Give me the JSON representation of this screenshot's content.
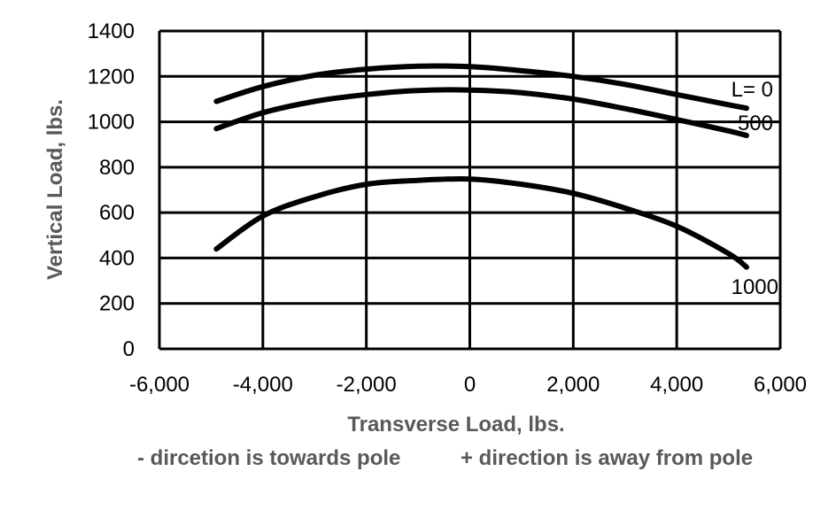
{
  "chart_data": {
    "type": "line",
    "title": "",
    "xlabel": "Transverse Load, lbs.",
    "ylabel": "Vertical Load, lbs.",
    "xlim": [
      -6000,
      6000
    ],
    "ylim": [
      0,
      1400
    ],
    "x_ticks": [
      -6000,
      -4000,
      -2000,
      0,
      2000,
      4000,
      6000
    ],
    "x_tick_labels": [
      "-6,000",
      "-4,000",
      "-2,000",
      "0",
      "2,000",
      "4,000",
      "6,000"
    ],
    "y_ticks": [
      0,
      200,
      400,
      600,
      800,
      1000,
      1200,
      1400
    ],
    "y_tick_labels": [
      "0",
      "200",
      "400",
      "600",
      "800",
      "1000",
      "1200",
      "1400"
    ],
    "grid": true,
    "legend": "none",
    "line_color": "#000000",
    "series": [
      {
        "name": "L=  0",
        "x": [
          -4900,
          -4000,
          -3000,
          -2000,
          -1000,
          0,
          1000,
          2000,
          3000,
          4000,
          5000,
          5350
        ],
        "values": [
          1090,
          1155,
          1205,
          1232,
          1245,
          1243,
          1225,
          1200,
          1165,
          1120,
          1075,
          1060
        ]
      },
      {
        "name": "500",
        "x": [
          -4900,
          -4000,
          -3000,
          -2000,
          -1000,
          0,
          1000,
          2000,
          3000,
          4000,
          5000,
          5350
        ],
        "values": [
          970,
          1040,
          1090,
          1120,
          1138,
          1140,
          1128,
          1100,
          1058,
          1010,
          960,
          940
        ]
      },
      {
        "name": "1000",
        "x": [
          -4900,
          -4000,
          -3000,
          -2000,
          -1000,
          0,
          1000,
          2000,
          3000,
          4000,
          5000,
          5350
        ],
        "values": [
          440,
          585,
          670,
          725,
          742,
          748,
          725,
          685,
          620,
          540,
          420,
          360
        ]
      }
    ],
    "annotations": [
      "- dircetion is towards pole",
      "+ direction is away from pole"
    ]
  }
}
